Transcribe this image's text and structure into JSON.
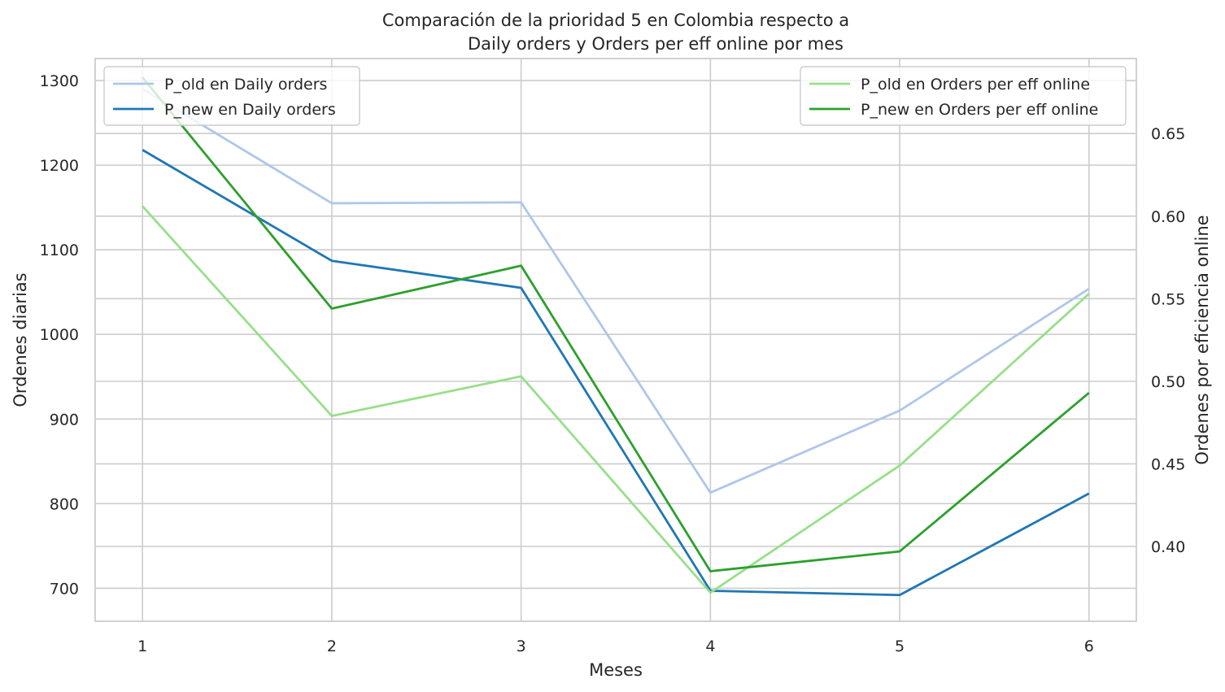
{
  "chart_data": {
    "type": "line",
    "title": "Comparación de la prioridad 5 en Colombia respecto a",
    "subtitle": "Daily orders y Orders per eff online por mes",
    "xlabel": "Meses",
    "ylabel_left": "Ordenes diarias",
    "ylabel_right": "Ordenes por eficiencia online",
    "x": [
      1,
      2,
      3,
      4,
      5,
      6
    ],
    "x_ticks": [
      "1",
      "2",
      "3",
      "4",
      "5",
      "6"
    ],
    "xlim": [
      0.75,
      6.25
    ],
    "ylim_left": [
      661,
      1326
    ],
    "ylim_right": [
      0.3547,
      0.6954
    ],
    "y_ticks_left": [
      "700",
      "800",
      "900",
      "1000",
      "1100",
      "1200",
      "1300"
    ],
    "y_ticks_right": [
      "0.40",
      "0.45",
      "0.50",
      "0.55",
      "0.60",
      "0.65"
    ],
    "grid": true,
    "legend_left_placement": "upper-left",
    "legend_right_placement": "upper-right",
    "series_left": [
      {
        "name": "P_old en Daily orders",
        "color": "#aec7e8",
        "values": [
          1290,
          1155,
          1156,
          813,
          910,
          1054
        ]
      },
      {
        "name": "P_new en Daily orders",
        "color": "#1f77b4",
        "values": [
          1218,
          1087,
          1055,
          697,
          692,
          812
        ]
      }
    ],
    "series_right": [
      {
        "name": "P_old en Orders per eff online",
        "color": "#98df8a",
        "values": [
          0.606,
          0.479,
          0.503,
          0.372,
          0.449,
          0.553
        ]
      },
      {
        "name": "P_new en Orders per eff online",
        "color": "#2ca02c",
        "values": [
          0.684,
          0.544,
          0.57,
          0.385,
          0.397,
          0.493
        ]
      }
    ]
  }
}
